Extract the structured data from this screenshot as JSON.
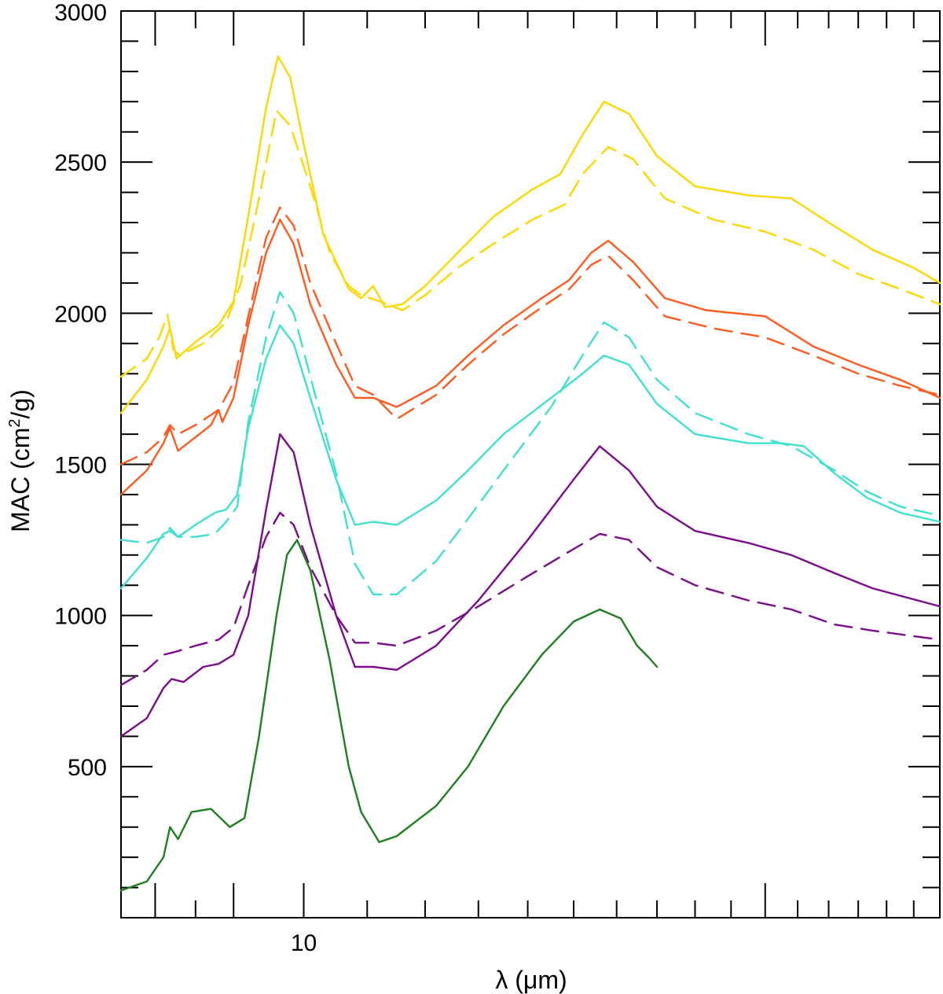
{
  "chart_data": {
    "type": "line",
    "title": "",
    "xlabel": "λ (μm)",
    "ylabel_main": "MAC (cm",
    "ylabel_sup": "2",
    "ylabel_tail": "/g)",
    "x_scale": "log",
    "xlim": [
      7.6,
      26.0
    ],
    "ylim": [
      0,
      3000
    ],
    "x_tick_labels": [
      {
        "value": 10,
        "label": "10"
      }
    ],
    "x_major_ticks": [
      8,
      9,
      10,
      20
    ],
    "x_minor_ticks": [
      8.5,
      11,
      12,
      13,
      14,
      15,
      16,
      17,
      18,
      19,
      21,
      22,
      23,
      24,
      25
    ],
    "y_tick_labels": [
      {
        "value": 500,
        "label": "500"
      },
      {
        "value": 1000,
        "label": "1000"
      },
      {
        "value": 1500,
        "label": "1500"
      },
      {
        "value": 2000,
        "label": "2000"
      },
      {
        "value": 2500,
        "label": "2500"
      },
      {
        "value": 3000,
        "label": "3000"
      }
    ],
    "y_minor_step": 100,
    "legend": "none",
    "grid": false,
    "series": [
      {
        "color": "#FFD700",
        "style": "solid",
        "points": [
          [
            7.6,
            1670
          ],
          [
            7.9,
            1780
          ],
          [
            8.1,
            1890
          ],
          [
            8.18,
            1950
          ],
          [
            8.26,
            1850
          ],
          [
            8.5,
            1905
          ],
          [
            8.8,
            1960
          ],
          [
            9.0,
            2040
          ],
          [
            9.2,
            2320
          ],
          [
            9.45,
            2680
          ],
          [
            9.62,
            2850
          ],
          [
            9.8,
            2780
          ],
          [
            10.0,
            2560
          ],
          [
            10.3,
            2260
          ],
          [
            10.7,
            2080
          ],
          [
            10.9,
            2050
          ],
          [
            11.1,
            2090
          ],
          [
            11.3,
            2020
          ],
          [
            11.6,
            2030
          ],
          [
            12.0,
            2090
          ],
          [
            12.6,
            2200
          ],
          [
            13.3,
            2320
          ],
          [
            14.1,
            2410
          ],
          [
            14.7,
            2460
          ],
          [
            15.2,
            2590
          ],
          [
            15.7,
            2700
          ],
          [
            16.3,
            2660
          ],
          [
            17.0,
            2520
          ],
          [
            18.0,
            2420
          ],
          [
            19.5,
            2390
          ],
          [
            20.8,
            2380
          ],
          [
            22.0,
            2300
          ],
          [
            23.5,
            2210
          ],
          [
            25.0,
            2150
          ],
          [
            26.0,
            2100
          ]
        ]
      },
      {
        "color": "#FFD700",
        "style": "dashed",
        "points": [
          [
            7.6,
            1790
          ],
          [
            7.9,
            1850
          ],
          [
            8.05,
            1920
          ],
          [
            8.15,
            1995
          ],
          [
            8.22,
            1880
          ],
          [
            8.3,
            1860
          ],
          [
            8.6,
            1900
          ],
          [
            8.9,
            1970
          ],
          [
            9.1,
            2100
          ],
          [
            9.35,
            2380
          ],
          [
            9.6,
            2670
          ],
          [
            9.8,
            2620
          ],
          [
            10.1,
            2420
          ],
          [
            10.4,
            2200
          ],
          [
            10.7,
            2090
          ],
          [
            10.9,
            2060
          ],
          [
            11.2,
            2040
          ],
          [
            11.6,
            2010
          ],
          [
            12.0,
            2060
          ],
          [
            12.6,
            2150
          ],
          [
            13.3,
            2230
          ],
          [
            14.1,
            2310
          ],
          [
            14.8,
            2360
          ],
          [
            15.2,
            2460
          ],
          [
            15.8,
            2550
          ],
          [
            16.4,
            2510
          ],
          [
            17.2,
            2380
          ],
          [
            18.5,
            2310
          ],
          [
            20.0,
            2270
          ],
          [
            21.5,
            2210
          ],
          [
            23.0,
            2130
          ],
          [
            24.5,
            2080
          ],
          [
            26.0,
            2030
          ]
        ]
      },
      {
        "color": "#FF5A1F",
        "style": "solid",
        "points": [
          [
            7.6,
            1400
          ],
          [
            7.9,
            1480
          ],
          [
            8.1,
            1570
          ],
          [
            8.18,
            1620
          ],
          [
            8.28,
            1545
          ],
          [
            8.5,
            1590
          ],
          [
            8.7,
            1630
          ],
          [
            8.8,
            1680
          ],
          [
            8.85,
            1640
          ],
          [
            9.0,
            1720
          ],
          [
            9.2,
            1960
          ],
          [
            9.45,
            2200
          ],
          [
            9.65,
            2310
          ],
          [
            9.85,
            2230
          ],
          [
            10.1,
            2030
          ],
          [
            10.5,
            1830
          ],
          [
            10.8,
            1720
          ],
          [
            11.1,
            1720
          ],
          [
            11.5,
            1690
          ],
          [
            12.2,
            1760
          ],
          [
            12.8,
            1860
          ],
          [
            13.5,
            1960
          ],
          [
            14.3,
            2050
          ],
          [
            14.9,
            2110
          ],
          [
            15.4,
            2200
          ],
          [
            15.8,
            2240
          ],
          [
            16.4,
            2170
          ],
          [
            17.2,
            2050
          ],
          [
            18.3,
            2010
          ],
          [
            20.0,
            1990
          ],
          [
            21.5,
            1890
          ],
          [
            23.0,
            1830
          ],
          [
            24.5,
            1780
          ],
          [
            26.0,
            1720
          ]
        ]
      },
      {
        "color": "#FF5A1F",
        "style": "dashed",
        "points": [
          [
            7.6,
            1500
          ],
          [
            7.9,
            1540
          ],
          [
            8.1,
            1590
          ],
          [
            8.18,
            1630
          ],
          [
            8.28,
            1600
          ],
          [
            8.5,
            1630
          ],
          [
            8.8,
            1680
          ],
          [
            9.0,
            1770
          ],
          [
            9.2,
            1990
          ],
          [
            9.45,
            2250
          ],
          [
            9.65,
            2350
          ],
          [
            9.85,
            2290
          ],
          [
            10.1,
            2100
          ],
          [
            10.5,
            1900
          ],
          [
            10.8,
            1760
          ],
          [
            11.1,
            1730
          ],
          [
            11.5,
            1650
          ],
          [
            12.2,
            1730
          ],
          [
            12.8,
            1830
          ],
          [
            13.5,
            1930
          ],
          [
            14.3,
            2020
          ],
          [
            14.9,
            2080
          ],
          [
            15.4,
            2160
          ],
          [
            15.8,
            2190
          ],
          [
            16.4,
            2110
          ],
          [
            17.2,
            1990
          ],
          [
            18.5,
            1950
          ],
          [
            20.0,
            1920
          ],
          [
            21.5,
            1860
          ],
          [
            23.0,
            1800
          ],
          [
            24.5,
            1760
          ],
          [
            26.0,
            1730
          ]
        ]
      },
      {
        "color": "#40E0D0",
        "style": "solid",
        "points": [
          [
            7.6,
            1090
          ],
          [
            7.9,
            1190
          ],
          [
            8.1,
            1270
          ],
          [
            8.18,
            1280
          ],
          [
            8.28,
            1260
          ],
          [
            8.5,
            1300
          ],
          [
            8.75,
            1340
          ],
          [
            8.9,
            1350
          ],
          [
            9.05,
            1400
          ],
          [
            9.2,
            1620
          ],
          [
            9.45,
            1850
          ],
          [
            9.65,
            1960
          ],
          [
            9.85,
            1900
          ],
          [
            10.1,
            1720
          ],
          [
            10.5,
            1450
          ],
          [
            10.8,
            1300
          ],
          [
            11.1,
            1310
          ],
          [
            11.5,
            1300
          ],
          [
            12.2,
            1380
          ],
          [
            12.8,
            1480
          ],
          [
            13.5,
            1600
          ],
          [
            14.5,
            1720
          ],
          [
            15.2,
            1800
          ],
          [
            15.7,
            1860
          ],
          [
            16.3,
            1830
          ],
          [
            17.0,
            1700
          ],
          [
            18.0,
            1600
          ],
          [
            19.5,
            1570
          ],
          [
            20.5,
            1570
          ],
          [
            21.2,
            1560
          ],
          [
            22.2,
            1470
          ],
          [
            23.3,
            1390
          ],
          [
            24.5,
            1340
          ],
          [
            26.0,
            1310
          ]
        ]
      },
      {
        "color": "#40E0D0",
        "style": "dashed",
        "points": [
          [
            7.6,
            1250
          ],
          [
            7.9,
            1240
          ],
          [
            8.1,
            1260
          ],
          [
            8.18,
            1290
          ],
          [
            8.28,
            1260
          ],
          [
            8.5,
            1260
          ],
          [
            8.75,
            1270
          ],
          [
            8.9,
            1310
          ],
          [
            9.05,
            1360
          ],
          [
            9.2,
            1640
          ],
          [
            9.45,
            1920
          ],
          [
            9.65,
            2070
          ],
          [
            9.85,
            2000
          ],
          [
            10.1,
            1790
          ],
          [
            10.5,
            1470
          ],
          [
            10.8,
            1170
          ],
          [
            11.1,
            1070
          ],
          [
            11.5,
            1070
          ],
          [
            12.2,
            1180
          ],
          [
            12.8,
            1320
          ],
          [
            13.5,
            1480
          ],
          [
            14.5,
            1690
          ],
          [
            15.2,
            1860
          ],
          [
            15.7,
            1970
          ],
          [
            16.3,
            1920
          ],
          [
            17.0,
            1780
          ],
          [
            18.0,
            1670
          ],
          [
            19.5,
            1600
          ],
          [
            20.8,
            1560
          ],
          [
            22.2,
            1480
          ],
          [
            23.3,
            1410
          ],
          [
            24.5,
            1360
          ],
          [
            26.0,
            1330
          ]
        ]
      },
      {
        "color": "#7B0C8C",
        "style": "solid",
        "points": [
          [
            7.6,
            600
          ],
          [
            7.9,
            660
          ],
          [
            8.1,
            760
          ],
          [
            8.2,
            790
          ],
          [
            8.35,
            780
          ],
          [
            8.6,
            830
          ],
          [
            8.8,
            840
          ],
          [
            9.0,
            870
          ],
          [
            9.2,
            1000
          ],
          [
            9.45,
            1350
          ],
          [
            9.65,
            1600
          ],
          [
            9.85,
            1540
          ],
          [
            10.1,
            1300
          ],
          [
            10.5,
            1000
          ],
          [
            10.8,
            830
          ],
          [
            11.1,
            830
          ],
          [
            11.5,
            820
          ],
          [
            12.2,
            900
          ],
          [
            13.0,
            1050
          ],
          [
            14.0,
            1250
          ],
          [
            15.0,
            1450
          ],
          [
            15.6,
            1560
          ],
          [
            16.3,
            1480
          ],
          [
            17.0,
            1360
          ],
          [
            18.0,
            1280
          ],
          [
            19.5,
            1240
          ],
          [
            20.8,
            1200
          ],
          [
            22.2,
            1140
          ],
          [
            23.5,
            1090
          ],
          [
            26.0,
            1030
          ]
        ]
      },
      {
        "color": "#7B0C8C",
        "style": "dashed",
        "points": [
          [
            7.6,
            770
          ],
          [
            7.9,
            820
          ],
          [
            8.1,
            870
          ],
          [
            8.25,
            880
          ],
          [
            8.5,
            900
          ],
          [
            8.8,
            920
          ],
          [
            9.0,
            960
          ],
          [
            9.2,
            1100
          ],
          [
            9.45,
            1260
          ],
          [
            9.65,
            1340
          ],
          [
            9.85,
            1300
          ],
          [
            10.1,
            1160
          ],
          [
            10.5,
            1000
          ],
          [
            10.8,
            910
          ],
          [
            11.1,
            910
          ],
          [
            11.5,
            900
          ],
          [
            12.2,
            950
          ],
          [
            13.0,
            1030
          ],
          [
            14.0,
            1130
          ],
          [
            15.0,
            1220
          ],
          [
            15.6,
            1270
          ],
          [
            16.3,
            1250
          ],
          [
            17.0,
            1160
          ],
          [
            18.0,
            1100
          ],
          [
            19.5,
            1050
          ],
          [
            20.8,
            1020
          ],
          [
            22.2,
            970
          ],
          [
            23.5,
            950
          ],
          [
            26.0,
            920
          ]
        ]
      },
      {
        "color": "#1E7F1E",
        "style": "solid",
        "points": [
          [
            7.6,
            90
          ],
          [
            7.9,
            120
          ],
          [
            8.1,
            200
          ],
          [
            8.18,
            300
          ],
          [
            8.28,
            260
          ],
          [
            8.45,
            350
          ],
          [
            8.7,
            360
          ],
          [
            8.95,
            300
          ],
          [
            9.15,
            330
          ],
          [
            9.35,
            600
          ],
          [
            9.6,
            1000
          ],
          [
            9.75,
            1200
          ],
          [
            9.9,
            1250
          ],
          [
            10.1,
            1150
          ],
          [
            10.4,
            850
          ],
          [
            10.7,
            500
          ],
          [
            10.9,
            350
          ],
          [
            11.2,
            250
          ],
          [
            11.5,
            270
          ],
          [
            12.2,
            370
          ],
          [
            12.8,
            500
          ],
          [
            13.5,
            700
          ],
          [
            14.3,
            870
          ],
          [
            15.0,
            980
          ],
          [
            15.6,
            1020
          ],
          [
            16.1,
            990
          ],
          [
            16.5,
            900
          ],
          [
            16.8,
            860
          ],
          [
            17.0,
            830
          ]
        ]
      }
    ]
  }
}
